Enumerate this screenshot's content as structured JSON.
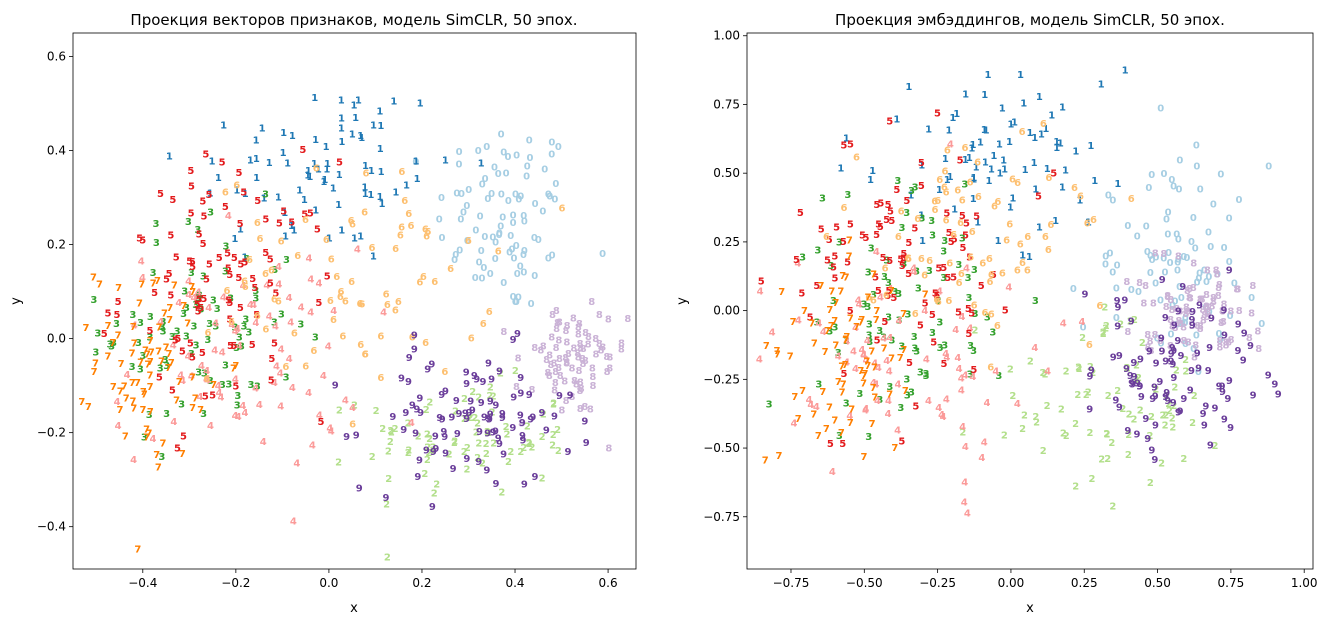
{
  "colors": {
    "0": "#a6cee3",
    "1": "#1f78b4",
    "2": "#b2df8a",
    "3": "#33a02c",
    "4": "#fb9a99",
    "5": "#e31a1c",
    "6": "#fdbf6f",
    "7": "#ff7f00",
    "8": "#cab2d6",
    "9": "#6a3d9a"
  },
  "chart_data": [
    {
      "type": "scatter",
      "title": "Проекция векторов признаков, модель SimCLR, 50 эпох.",
      "xlabel": "x",
      "ylabel": "y",
      "xlim": [
        -0.55,
        0.66
      ],
      "ylim": [
        -0.49,
        0.65
      ],
      "xticks": [
        -0.4,
        -0.2,
        0.0,
        0.2,
        0.4,
        0.6
      ],
      "xtick_labels": [
        "−0.4",
        "−0.2",
        "0.0",
        "0.2",
        "0.4",
        "0.6"
      ],
      "yticks": [
        -0.4,
        -0.2,
        0.0,
        0.2,
        0.4,
        0.6
      ],
      "ytick_labels": [
        "−0.4",
        "−0.2",
        "0.0",
        "0.2",
        "0.4",
        "0.6"
      ],
      "marker": "digit class label",
      "clusters": [
        {
          "label": "0",
          "center": [
            0.38,
            0.25
          ],
          "spread": [
            0.1,
            0.14
          ],
          "count": 90
        },
        {
          "label": "1",
          "center": [
            -0.02,
            0.35
          ],
          "spread": [
            0.2,
            0.14
          ],
          "count": 80
        },
        {
          "label": "2",
          "center": [
            0.3,
            -0.22
          ],
          "spread": [
            0.15,
            0.08
          ],
          "count": 80
        },
        {
          "label": "3",
          "center": [
            -0.28,
            0.02
          ],
          "spread": [
            0.14,
            0.16
          ],
          "count": 85
        },
        {
          "label": "4",
          "center": [
            -0.2,
            -0.05
          ],
          "spread": [
            0.18,
            0.16
          ],
          "count": 85
        },
        {
          "label": "5",
          "center": [
            -0.22,
            0.1
          ],
          "spread": [
            0.15,
            0.18
          ],
          "count": 90
        },
        {
          "label": "6",
          "center": [
            0.05,
            0.12
          ],
          "spread": [
            0.2,
            0.15
          ],
          "count": 75
        },
        {
          "label": "7",
          "center": [
            -0.38,
            -0.05
          ],
          "spread": [
            0.08,
            0.14
          ],
          "count": 75
        },
        {
          "label": "8",
          "center": [
            0.52,
            -0.06
          ],
          "spread": [
            0.08,
            0.08
          ],
          "count": 85
        },
        {
          "label": "9",
          "center": [
            0.3,
            -0.18
          ],
          "spread": [
            0.15,
            0.1
          ],
          "count": 95
        }
      ]
    },
    {
      "type": "scatter",
      "title": "Проекция эмбэддингов, модель SimCLR, 50 эпох.",
      "xlabel": "x",
      "ylabel": "y",
      "xlim": [
        -0.9,
        1.03
      ],
      "ylim": [
        -0.94,
        1.01
      ],
      "xticks": [
        -0.75,
        -0.5,
        -0.25,
        0.0,
        0.25,
        0.5,
        0.75,
        1.0
      ],
      "xtick_labels": [
        "−0.75",
        "−0.50",
        "−0.25",
        "0.00",
        "0.25",
        "0.50",
        "0.75",
        "1.00"
      ],
      "yticks": [
        -0.75,
        -0.5,
        -0.25,
        0.0,
        0.25,
        0.5,
        0.75,
        1.0
      ],
      "ytick_labels": [
        "−0.75",
        "−0.50",
        "−0.25",
        "0.00",
        "0.25",
        "0.50",
        "0.75",
        "1.00"
      ],
      "marker": "digit class label",
      "clusters": [
        {
          "label": "0",
          "center": [
            0.55,
            0.15
          ],
          "spread": [
            0.2,
            0.25
          ],
          "count": 90
        },
        {
          "label": "1",
          "center": [
            -0.05,
            0.55
          ],
          "spread": [
            0.3,
            0.2
          ],
          "count": 80
        },
        {
          "label": "2",
          "center": [
            0.35,
            -0.35
          ],
          "spread": [
            0.3,
            0.2
          ],
          "count": 80
        },
        {
          "label": "3",
          "center": [
            -0.4,
            0.0
          ],
          "spread": [
            0.25,
            0.3
          ],
          "count": 85
        },
        {
          "label": "4",
          "center": [
            -0.35,
            -0.2
          ],
          "spread": [
            0.3,
            0.3
          ],
          "count": 85
        },
        {
          "label": "5",
          "center": [
            -0.35,
            0.15
          ],
          "spread": [
            0.25,
            0.3
          ],
          "count": 90
        },
        {
          "label": "6",
          "center": [
            -0.1,
            0.25
          ],
          "spread": [
            0.3,
            0.25
          ],
          "count": 75
        },
        {
          "label": "7",
          "center": [
            -0.55,
            -0.15
          ],
          "spread": [
            0.15,
            0.25
          ],
          "count": 75
        },
        {
          "label": "8",
          "center": [
            0.62,
            -0.02
          ],
          "spread": [
            0.15,
            0.12
          ],
          "count": 85
        },
        {
          "label": "9",
          "center": [
            0.55,
            -0.25
          ],
          "spread": [
            0.2,
            0.2
          ],
          "count": 95
        }
      ]
    }
  ]
}
